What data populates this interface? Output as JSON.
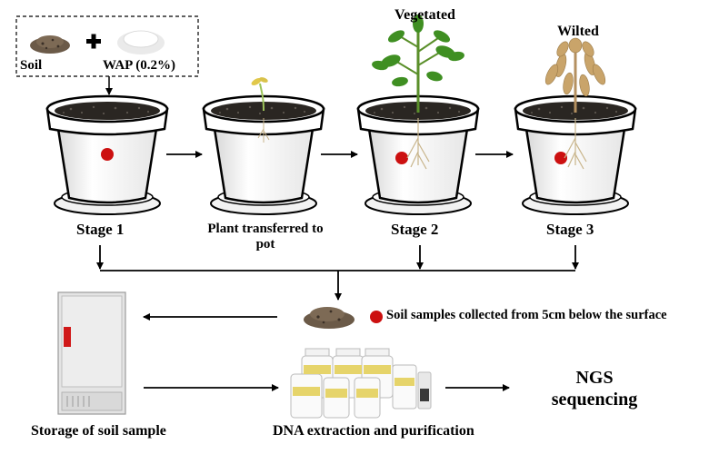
{
  "inputs": {
    "soil_label": "Soil",
    "plus_symbol": "✚",
    "wap_label": "WAP (0.2%)"
  },
  "stages": [
    {
      "label": "Stage 1",
      "state": ""
    },
    {
      "label": "Plant transferred to",
      "label_line2": "pot",
      "state": ""
    },
    {
      "label": "Stage 2",
      "state": "Vegetated"
    },
    {
      "label": "Stage 3",
      "state": "Wilted"
    }
  ],
  "sampling": {
    "label": "Soil samples collected from 5cm below the surface"
  },
  "storage": {
    "label": "Storage of soil sample"
  },
  "extraction": {
    "label": "DNA extraction and purification"
  },
  "sequencing": {
    "line1": "NGS",
    "line2": "sequencing"
  },
  "icons": [
    "soil-pile-icon",
    "wap-powder-icon",
    "plant-pot-icon",
    "seedling-icon",
    "vegetated-plant-icon",
    "wilted-plant-icon",
    "sample-dot-icon",
    "freezer-icon",
    "reagent-bottles-icon"
  ],
  "colors": {
    "sample_dot": "#cc1010",
    "soil": "#2a2622",
    "leaf": "#3f8f22",
    "wilted": "#c9a46a",
    "freezer_handle": "#d01818"
  }
}
